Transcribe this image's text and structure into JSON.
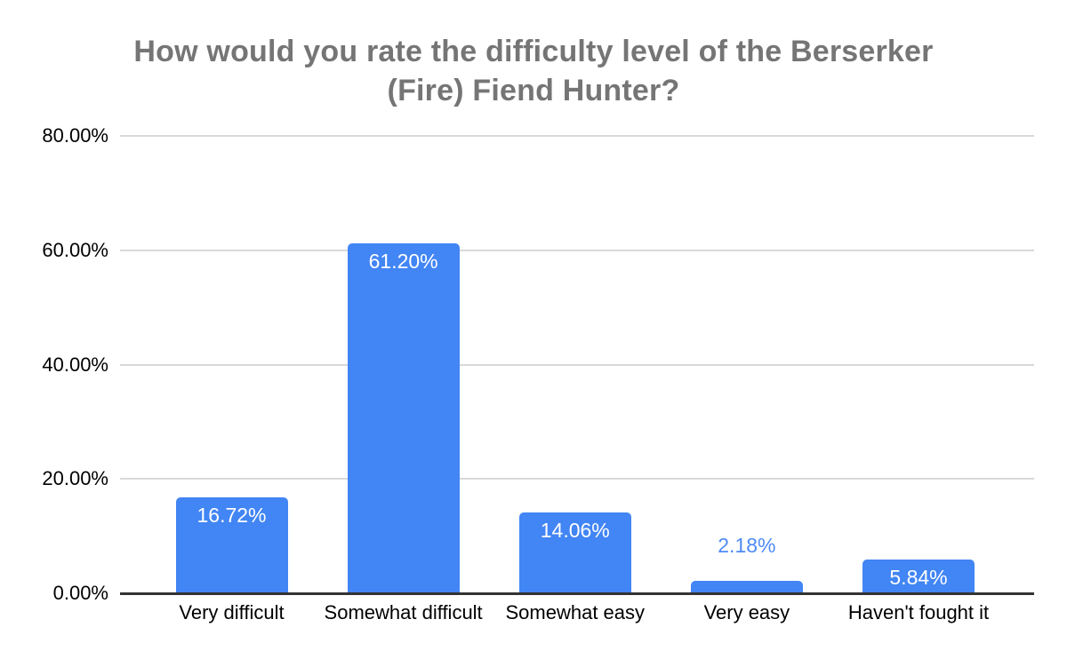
{
  "chart_data": {
    "type": "bar",
    "title": "How would you rate the difficulty level of the Berserker (Fire) Fiend Hunter?",
    "title_lines": [
      "How would you rate the difficulty level of the Berserker",
      "(Fire) Fiend Hunter?"
    ],
    "categories": [
      "Very difficult",
      "Somewhat difficult",
      "Somewhat easy",
      "Very easy",
      "Haven't fought it"
    ],
    "values": [
      16.72,
      61.2,
      14.06,
      2.18,
      5.84
    ],
    "value_labels": [
      "16.72%",
      "61.20%",
      "14.06%",
      "2.18%",
      "5.84%"
    ],
    "yticks": [
      {
        "label": "0.00%",
        "value": 0
      },
      {
        "label": "20.00%",
        "value": 20
      },
      {
        "label": "40.00%",
        "value": 40
      },
      {
        "label": "60.00%",
        "value": 60
      },
      {
        "label": "80.00%",
        "value": 80
      }
    ],
    "ylim": [
      0,
      80
    ],
    "xlabel": "",
    "ylabel": "",
    "grid": true,
    "legend": "none",
    "outside_label_threshold": 4,
    "colors": {
      "bar": "#4285f4",
      "value_label_inside": "#ffffff",
      "value_label_outside": "#4e8af4",
      "gridline": "#d9d9d9",
      "baseline": "#333333",
      "title": "#757575",
      "axis_text": "#000000",
      "background": "#ffffff"
    }
  }
}
